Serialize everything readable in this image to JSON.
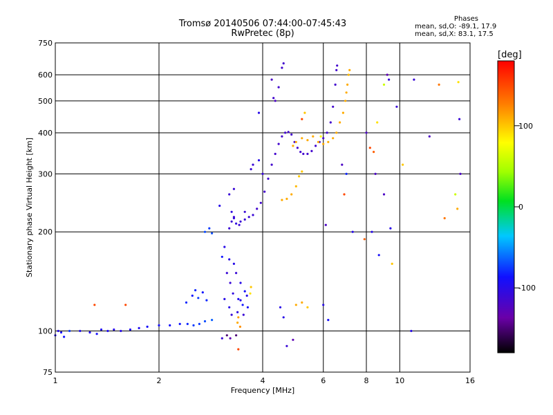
{
  "header": {
    "title": "Tromsø 20140506 07:44:00-07:45:43",
    "subtitle": "RwPretec (8p)"
  },
  "stats": {
    "heading": "Phases",
    "o_label": "mean, sd,O:",
    "o_value": "-89.1, 17.9",
    "x_label": "mean, sd,X:",
    "x_value": "83.1, 17.5"
  },
  "chart_data": {
    "type": "scatter",
    "title": "Tromsø 20140506 07:44:00-07:45:43",
    "subtitle": "RwPretec (8p)",
    "xlabel": "Frequency [MHz]",
    "ylabel": "Stationary phase Virtual Height [km]",
    "x_scale": "log",
    "y_scale": "log",
    "xlim": [
      1,
      16
    ],
    "ylim": [
      75,
      750
    ],
    "x_ticks": [
      1,
      2,
      4,
      6,
      8,
      10,
      16
    ],
    "y_ticks": [
      75,
      100,
      200,
      300,
      400,
      500,
      600,
      750
    ],
    "grid": true,
    "colorbar": {
      "label": "[deg]",
      "range": [
        -180,
        180
      ],
      "ticks": [
        100,
        0,
        -100
      ]
    },
    "series": [
      {
        "points": [
          [
            1.0,
            97,
            -95
          ],
          [
            1.02,
            100,
            -100
          ],
          [
            1.04,
            99,
            -90
          ],
          [
            1.06,
            96,
            -85
          ],
          [
            1.1,
            100,
            -75
          ],
          [
            1.18,
            100,
            -95
          ],
          [
            1.26,
            99,
            -95
          ],
          [
            1.32,
            98,
            -90
          ],
          [
            1.36,
            101,
            -95
          ],
          [
            1.42,
            100,
            -95
          ],
          [
            1.48,
            101,
            -100
          ],
          [
            1.55,
            100,
            -100
          ],
          [
            1.65,
            101,
            -95
          ],
          [
            1.75,
            102,
            -95
          ],
          [
            1.85,
            103,
            -90
          ],
          [
            2.0,
            104,
            -90
          ],
          [
            2.15,
            104,
            -88
          ],
          [
            2.3,
            105,
            -85
          ],
          [
            2.42,
            105,
            -80
          ],
          [
            2.52,
            104,
            -75
          ],
          [
            2.62,
            105,
            -75
          ],
          [
            2.72,
            107,
            -70
          ],
          [
            2.85,
            108,
            -65
          ],
          [
            2.4,
            122,
            -80
          ],
          [
            2.5,
            128,
            -85
          ],
          [
            2.55,
            133,
            -80
          ],
          [
            2.6,
            126,
            -75
          ],
          [
            2.68,
            131,
            -85
          ],
          [
            2.75,
            124,
            -80
          ],
          [
            2.72,
            200,
            -70
          ],
          [
            2.8,
            205,
            -75
          ],
          [
            2.85,
            198,
            -70
          ],
          [
            3.05,
            168,
            -85
          ],
          [
            3.1,
            180,
            -100
          ],
          [
            3.15,
            150,
            -110
          ],
          [
            3.2,
            165,
            -100
          ],
          [
            3.22,
            140,
            -110
          ],
          [
            3.28,
            130,
            -105
          ],
          [
            3.3,
            160,
            -100
          ],
          [
            3.35,
            150,
            -110
          ],
          [
            3.4,
            125,
            -95
          ],
          [
            3.45,
            140,
            -100
          ],
          [
            3.5,
            120,
            -85
          ],
          [
            3.55,
            132,
            -90
          ],
          [
            3.6,
            128,
            -100
          ],
          [
            3.62,
            118,
            -90
          ],
          [
            3.2,
            118,
            -100
          ],
          [
            3.25,
            112,
            -110
          ],
          [
            3.38,
            114,
            -105
          ],
          [
            3.45,
            124,
            -100
          ],
          [
            3.52,
            112,
            -110
          ],
          [
            3.1,
            125,
            -100
          ],
          [
            3.05,
            95,
            -110
          ],
          [
            3.15,
            97,
            -150
          ],
          [
            3.22,
            95,
            -130
          ],
          [
            3.35,
            97,
            -150
          ],
          [
            3.4,
            110,
            115
          ],
          [
            3.44,
            103,
            120
          ],
          [
            3.38,
            106,
            110
          ],
          [
            3.4,
            88,
            150
          ],
          [
            3.7,
            136,
            100
          ],
          [
            3.68,
            130,
            90
          ],
          [
            3.0,
            240,
            -100
          ],
          [
            3.2,
            260,
            -110
          ],
          [
            3.25,
            230,
            -105
          ],
          [
            3.3,
            220,
            -105
          ],
          [
            3.35,
            212,
            -105
          ],
          [
            3.45,
            215,
            -110
          ],
          [
            3.55,
            218,
            -110
          ],
          [
            3.65,
            222,
            -110
          ],
          [
            3.75,
            225,
            -110
          ],
          [
            3.85,
            235,
            -115
          ],
          [
            3.95,
            245,
            -115
          ],
          [
            4.05,
            265,
            -115
          ],
          [
            4.15,
            290,
            -115
          ],
          [
            4.25,
            320,
            -115
          ],
          [
            4.35,
            345,
            -115
          ],
          [
            4.45,
            370,
            -115
          ],
          [
            4.55,
            390,
            -115
          ],
          [
            4.65,
            400,
            -115
          ],
          [
            4.75,
            402,
            -115
          ],
          [
            4.85,
            395,
            -115
          ],
          [
            4.95,
            375,
            -115
          ],
          [
            5.05,
            360,
            -115
          ],
          [
            5.15,
            350,
            -115
          ],
          [
            5.25,
            345,
            -115
          ],
          [
            5.4,
            345,
            -115
          ],
          [
            5.55,
            352,
            -115
          ],
          [
            5.7,
            365,
            -115
          ],
          [
            5.85,
            375,
            -115
          ],
          [
            6.0,
            385,
            -115
          ],
          [
            6.15,
            400,
            -115
          ],
          [
            6.3,
            430,
            -115
          ],
          [
            6.4,
            480,
            -115
          ],
          [
            6.5,
            560,
            -115
          ],
          [
            6.55,
            620,
            -115
          ],
          [
            6.58,
            640,
            -115
          ],
          [
            3.2,
            205,
            -110
          ],
          [
            3.25,
            215,
            -110
          ],
          [
            3.3,
            222,
            -110
          ],
          [
            3.42,
            210,
            -110
          ],
          [
            3.3,
            270,
            -110
          ],
          [
            3.55,
            230,
            -110
          ],
          [
            3.7,
            310,
            -110
          ],
          [
            3.75,
            320,
            -110
          ],
          [
            3.9,
            330,
            -100
          ],
          [
            4.3,
            510,
            -115
          ],
          [
            4.35,
            500,
            -120
          ],
          [
            4.45,
            550,
            -115
          ],
          [
            4.55,
            630,
            -115
          ],
          [
            4.6,
            650,
            -115
          ],
          [
            4.25,
            580,
            -120
          ],
          [
            3.9,
            460,
            -100
          ],
          [
            4.0,
            300,
            -110
          ],
          [
            4.55,
            250,
            110
          ],
          [
            4.7,
            252,
            110
          ],
          [
            4.85,
            260,
            110
          ],
          [
            5.0,
            275,
            105
          ],
          [
            5.1,
            295,
            100
          ],
          [
            5.2,
            305,
            100
          ],
          [
            4.9,
            365,
            110
          ],
          [
            5.0,
            375,
            110
          ],
          [
            5.2,
            385,
            110
          ],
          [
            5.4,
            380,
            110
          ],
          [
            5.6,
            390,
            110
          ],
          [
            5.8,
            375,
            110
          ],
          [
            6.0,
            370,
            110
          ],
          [
            6.2,
            375,
            110
          ],
          [
            6.4,
            385,
            110
          ],
          [
            6.55,
            400,
            110
          ],
          [
            6.7,
            430,
            110
          ],
          [
            6.85,
            460,
            110
          ],
          [
            6.95,
            500,
            110
          ],
          [
            7.0,
            530,
            110
          ],
          [
            7.05,
            560,
            110
          ],
          [
            7.1,
            600,
            105
          ],
          [
            7.15,
            620,
            110
          ],
          [
            4.6,
            110,
            -100
          ],
          [
            4.5,
            118,
            -100
          ],
          [
            4.7,
            90,
            -110
          ],
          [
            4.9,
            94,
            -130
          ],
          [
            5.0,
            120,
            110
          ],
          [
            5.2,
            122,
            110
          ],
          [
            5.4,
            118,
            100
          ],
          [
            6.0,
            120,
            -100
          ],
          [
            6.2,
            108,
            -90
          ],
          [
            5.2,
            440,
            150
          ],
          [
            5.3,
            460,
            100
          ],
          [
            5.9,
            390,
            80
          ],
          [
            6.1,
            210,
            -120
          ],
          [
            6.9,
            260,
            150
          ],
          [
            7.0,
            300,
            -80
          ],
          [
            8.2,
            360,
            150
          ],
          [
            8.4,
            350,
            140
          ],
          [
            8.5,
            300,
            -120
          ],
          [
            8.3,
            200,
            -100
          ],
          [
            8.7,
            170,
            -90
          ],
          [
            9.0,
            260,
            -120
          ],
          [
            9.2,
            600,
            -130
          ],
          [
            9.3,
            580,
            -110
          ],
          [
            9.0,
            560,
            60
          ],
          [
            9.4,
            205,
            -100
          ],
          [
            9.5,
            160,
            100
          ],
          [
            10.8,
            100,
            -100
          ],
          [
            11.0,
            580,
            -110
          ],
          [
            12.2,
            390,
            -120
          ],
          [
            13.0,
            560,
            130
          ],
          [
            13.5,
            220,
            130
          ],
          [
            14.8,
            570,
            90
          ],
          [
            14.9,
            440,
            -110
          ],
          [
            15.0,
            300,
            -120
          ],
          [
            8.6,
            430,
            90
          ],
          [
            7.3,
            200,
            -100
          ],
          [
            6.8,
            320,
            -120
          ],
          [
            8.0,
            400,
            -120
          ],
          [
            7.9,
            190,
            140
          ],
          [
            9.8,
            480,
            -110
          ],
          [
            10.2,
            320,
            100
          ],
          [
            14.5,
            260,
            60
          ],
          [
            14.7,
            235,
            110
          ],
          [
            1.6,
            120,
            150
          ],
          [
            1.3,
            120,
            150
          ]
        ]
      }
    ]
  }
}
